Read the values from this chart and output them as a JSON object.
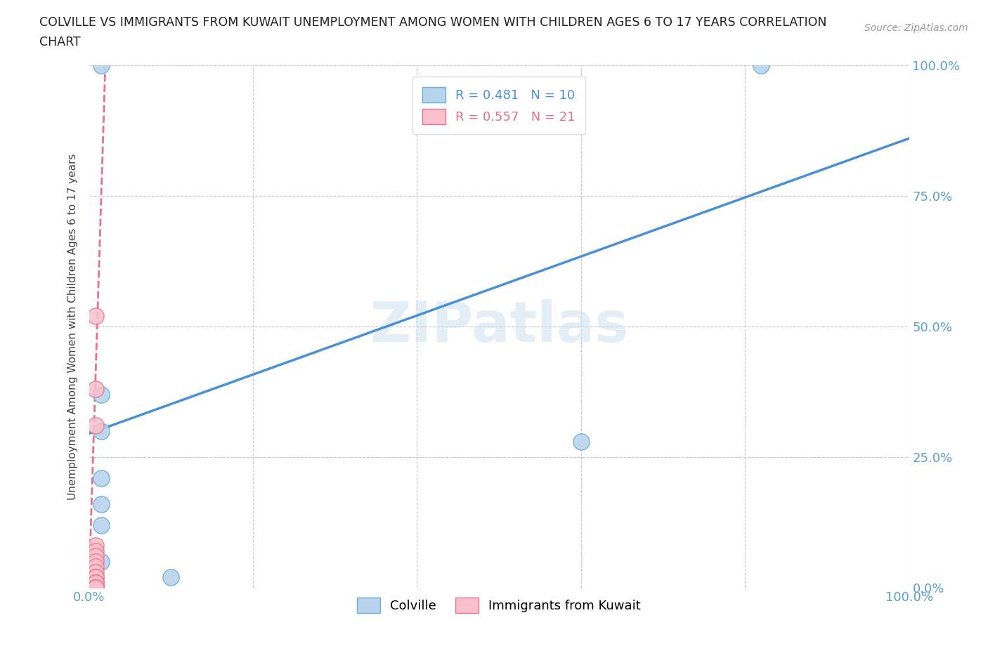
{
  "title_line1": "COLVILLE VS IMMIGRANTS FROM KUWAIT UNEMPLOYMENT AMONG WOMEN WITH CHILDREN AGES 6 TO 17 YEARS CORRELATION",
  "title_line2": "CHART",
  "source": "Source: ZipAtlas.com",
  "ylabel": "Unemployment Among Women with Children Ages 6 to 17 years",
  "xlim": [
    0.0,
    1.0
  ],
  "ylim": [
    0.0,
    1.0
  ],
  "colville_x": [
    0.015,
    0.015,
    0.015,
    0.015,
    0.015,
    0.015,
    0.015,
    0.1,
    0.6,
    0.82
  ],
  "colville_y": [
    1.0,
    0.37,
    0.21,
    0.16,
    0.12,
    0.05,
    0.3,
    0.02,
    0.28,
    1.0
  ],
  "kuwait_x": [
    0.008,
    0.008,
    0.008,
    0.008,
    0.008,
    0.008,
    0.008,
    0.008,
    0.008,
    0.008,
    0.008,
    0.008,
    0.008,
    0.008,
    0.008,
    0.008,
    0.008,
    0.008,
    0.008,
    0.008,
    0.008
  ],
  "kuwait_y": [
    0.52,
    0.38,
    0.31,
    0.08,
    0.07,
    0.06,
    0.05,
    0.04,
    0.03,
    0.02,
    0.02,
    0.01,
    0.01,
    0.01,
    0.0,
    0.0,
    0.0,
    0.0,
    0.0,
    0.0,
    0.0
  ],
  "colville_trendline_x": [
    0.0,
    1.0
  ],
  "colville_trendline_y": [
    0.295,
    0.86
  ],
  "kuwait_trendline_x": [
    0.0,
    0.02
  ],
  "kuwait_trendline_y": [
    0.0,
    1.0
  ],
  "colville_fill_color": "#b8d4ed",
  "colville_edge_color": "#6aaed6",
  "kuwait_fill_color": "#f9c0cb",
  "kuwait_edge_color": "#f07090",
  "colville_line_color": "#4a90d9",
  "kuwait_line_color": "#e8708a",
  "colville_R": 0.481,
  "colville_N": 10,
  "kuwait_R": 0.557,
  "kuwait_N": 21,
  "legend_label_colville": "Colville",
  "legend_label_kuwait": "Immigrants from Kuwait",
  "watermark": "ZIPatlas",
  "background_color": "#ffffff",
  "grid_color": "#c8c8c8",
  "axis_color": "#5a9fd4",
  "title_color": "#222222"
}
